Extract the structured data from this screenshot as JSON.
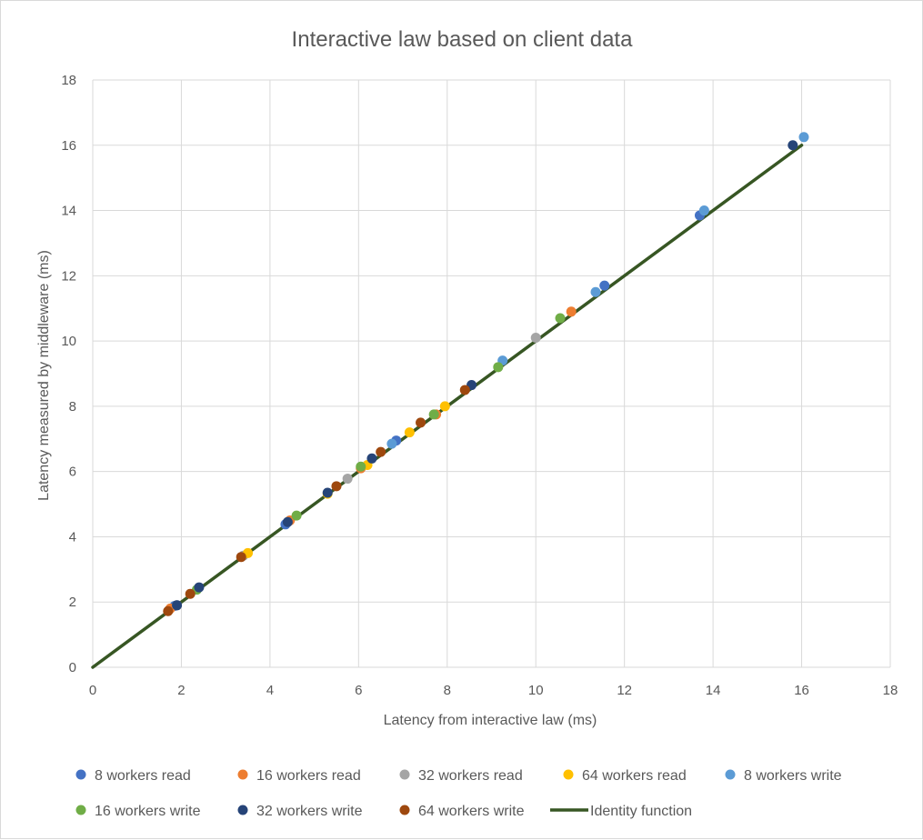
{
  "chart_data": {
    "type": "scatter",
    "title": "Interactive law based on client data",
    "xlabel": "Latency from interactive law (ms)",
    "ylabel": "Latency measured by middleware (ms)",
    "xlim": [
      0,
      18
    ],
    "ylim": [
      0,
      18
    ],
    "xticks": [
      "0",
      "2",
      "4",
      "6",
      "8",
      "10",
      "12",
      "14",
      "16",
      "18"
    ],
    "yticks": [
      "0",
      "2",
      "4",
      "6",
      "8",
      "10",
      "12",
      "14",
      "16",
      "18"
    ],
    "grid": true,
    "legend_position": "bottom",
    "series": [
      {
        "name": "8 workers read",
        "color": "#4472c4",
        "points": [
          [
            1.85,
            1.88
          ],
          [
            4.35,
            4.38
          ],
          [
            6.85,
            6.95
          ],
          [
            11.55,
            11.7
          ],
          [
            13.7,
            13.85
          ]
        ]
      },
      {
        "name": "16 workers read",
        "color": "#ed7d31",
        "points": [
          [
            1.75,
            1.8
          ],
          [
            4.45,
            4.5
          ],
          [
            6.05,
            6.1
          ],
          [
            7.75,
            7.75
          ],
          [
            10.8,
            10.9
          ]
        ]
      },
      {
        "name": "32 workers read",
        "color": "#a5a5a5",
        "points": [
          [
            1.9,
            1.9
          ],
          [
            3.4,
            3.42
          ],
          [
            5.75,
            5.78
          ],
          [
            10.0,
            10.1
          ]
        ]
      },
      {
        "name": "64 workers read",
        "color": "#ffc000",
        "points": [
          [
            3.5,
            3.5
          ],
          [
            5.3,
            5.32
          ],
          [
            6.2,
            6.2
          ],
          [
            7.15,
            7.2
          ],
          [
            7.95,
            8.0
          ]
        ]
      },
      {
        "name": "8 workers write",
        "color": "#5b9bd5",
        "points": [
          [
            6.75,
            6.85
          ],
          [
            9.25,
            9.4
          ],
          [
            11.35,
            11.5
          ],
          [
            13.8,
            14.0
          ],
          [
            16.05,
            16.25
          ]
        ]
      },
      {
        "name": "16 workers write",
        "color": "#70ad47",
        "points": [
          [
            2.35,
            2.38
          ],
          [
            4.6,
            4.65
          ],
          [
            6.05,
            6.15
          ],
          [
            7.7,
            7.75
          ],
          [
            9.15,
            9.2
          ],
          [
            10.55,
            10.7
          ]
        ]
      },
      {
        "name": "32 workers write",
        "color": "#264478",
        "points": [
          [
            1.9,
            1.9
          ],
          [
            2.4,
            2.45
          ],
          [
            4.4,
            4.45
          ],
          [
            5.3,
            5.35
          ],
          [
            6.3,
            6.4
          ],
          [
            8.55,
            8.65
          ],
          [
            15.8,
            16.0
          ]
        ]
      },
      {
        "name": "64 workers write",
        "color": "#9e480e",
        "points": [
          [
            1.7,
            1.72
          ],
          [
            2.2,
            2.25
          ],
          [
            3.35,
            3.38
          ],
          [
            5.5,
            5.55
          ],
          [
            6.5,
            6.6
          ],
          [
            7.4,
            7.5
          ],
          [
            8.4,
            8.5
          ]
        ]
      }
    ],
    "line_series": {
      "name": "Identity function",
      "color": "#375623",
      "points": [
        [
          0,
          0
        ],
        [
          16,
          16
        ]
      ]
    }
  }
}
